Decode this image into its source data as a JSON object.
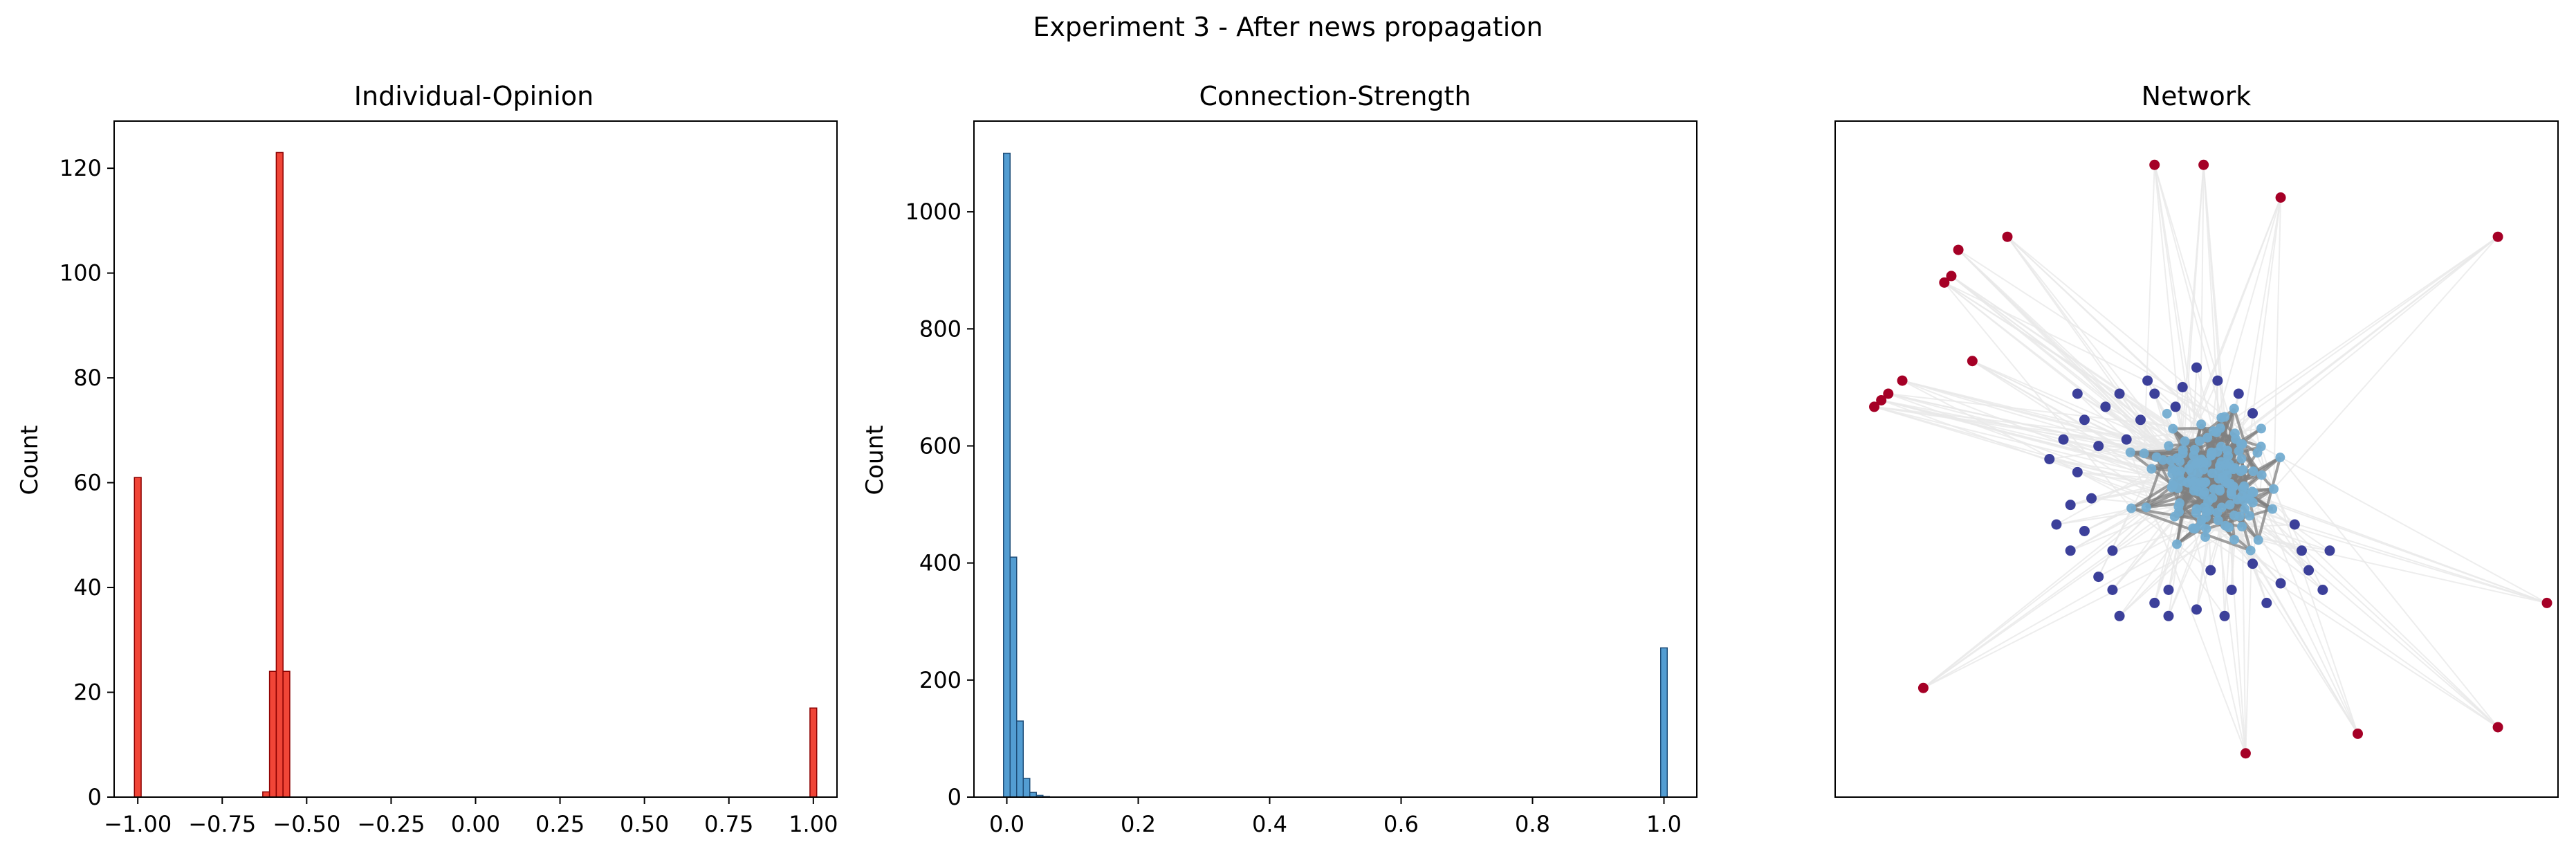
{
  "suptitle": "Experiment 3 - After news propagation",
  "colors": {
    "opinion_bar": "#ef3b2c",
    "opinion_edge": "#8b0000",
    "strength_bar": "#4a98d0",
    "strength_edge": "#1f4e79",
    "node_outer": "#a50026",
    "node_mid": "#313695",
    "node_core": "#74add1",
    "edge_strong": "#808080",
    "edge_weak": "#e8e8e8"
  },
  "chart_data": [
    {
      "type": "bar",
      "title": "Individual-Opinion",
      "xlabel": "",
      "ylabel": "Count",
      "xlim": [
        -1.07,
        1.07
      ],
      "ylim": [
        0,
        129
      ],
      "xticks": [
        -1.0,
        -0.75,
        -0.5,
        -0.25,
        0.0,
        0.25,
        0.5,
        0.75,
        1.0
      ],
      "xtick_labels": [
        "−1.00",
        "−0.75",
        "−0.50",
        "−0.25",
        "0.00",
        "0.25",
        "0.50",
        "0.75",
        "1.00"
      ],
      "yticks": [
        0,
        20,
        40,
        60,
        80,
        100,
        120
      ],
      "bin_width": 0.02,
      "bins": [
        {
          "x": -1.0,
          "count": 61
        },
        {
          "x": -0.62,
          "count": 1
        },
        {
          "x": -0.6,
          "count": 24
        },
        {
          "x": -0.58,
          "count": 123
        },
        {
          "x": -0.56,
          "count": 24
        },
        {
          "x": 1.0,
          "count": 17
        }
      ]
    },
    {
      "type": "bar",
      "title": "Connection-Strength",
      "xlabel": "",
      "ylabel": "Count",
      "xlim": [
        -0.05,
        1.05
      ],
      "ylim": [
        0,
        1155
      ],
      "xticks": [
        0.0,
        0.2,
        0.4,
        0.6,
        0.8,
        1.0
      ],
      "xtick_labels": [
        "0.0",
        "0.2",
        "0.4",
        "0.6",
        "0.8",
        "1.0"
      ],
      "yticks": [
        0,
        200,
        400,
        600,
        800,
        1000
      ],
      "bin_width": 0.01,
      "bins": [
        {
          "x": 0.0,
          "count": 1100
        },
        {
          "x": 0.01,
          "count": 410
        },
        {
          "x": 0.02,
          "count": 130
        },
        {
          "x": 0.03,
          "count": 32
        },
        {
          "x": 0.04,
          "count": 8
        },
        {
          "x": 0.05,
          "count": 3
        },
        {
          "x": 0.06,
          "count": 1
        },
        {
          "x": 1.0,
          "count": 255
        }
      ]
    },
    {
      "type": "network",
      "title": "Network",
      "xlabel": "",
      "ylabel": "",
      "xlim": [
        0,
        1
      ],
      "ylim": [
        0,
        1
      ],
      "outer_nodes": [
        [
          0.44,
          0.95
        ],
        [
          0.51,
          0.95
        ],
        [
          0.62,
          0.9
        ],
        [
          0.93,
          0.84
        ],
        [
          0.23,
          0.84
        ],
        [
          0.16,
          0.82
        ],
        [
          0.15,
          0.78
        ],
        [
          0.14,
          0.77
        ],
        [
          0.18,
          0.65
        ],
        [
          0.08,
          0.62
        ],
        [
          0.06,
          0.6
        ],
        [
          0.05,
          0.59
        ],
        [
          0.04,
          0.58
        ],
        [
          1.0,
          0.28
        ],
        [
          0.11,
          0.15
        ],
        [
          0.57,
          0.05
        ],
        [
          0.73,
          0.08
        ],
        [
          0.93,
          0.09
        ]
      ],
      "mid_nodes": [
        [
          0.37,
          0.58
        ],
        [
          0.44,
          0.6
        ],
        [
          0.53,
          0.62
        ],
        [
          0.48,
          0.61
        ],
        [
          0.58,
          0.57
        ],
        [
          0.34,
          0.56
        ],
        [
          0.31,
          0.53
        ],
        [
          0.29,
          0.5
        ],
        [
          0.33,
          0.48
        ],
        [
          0.35,
          0.44
        ],
        [
          0.32,
          0.43
        ],
        [
          0.3,
          0.4
        ],
        [
          0.34,
          0.39
        ],
        [
          0.32,
          0.36
        ],
        [
          0.36,
          0.32
        ],
        [
          0.38,
          0.3
        ],
        [
          0.39,
          0.26
        ],
        [
          0.44,
          0.28
        ],
        [
          0.46,
          0.3
        ],
        [
          0.5,
          0.27
        ],
        [
          0.52,
          0.33
        ],
        [
          0.55,
          0.3
        ],
        [
          0.58,
          0.34
        ],
        [
          0.62,
          0.31
        ],
        [
          0.66,
          0.33
        ],
        [
          0.68,
          0.3
        ],
        [
          0.69,
          0.36
        ],
        [
          0.64,
          0.4
        ],
        [
          0.4,
          0.53
        ],
        [
          0.42,
          0.56
        ],
        [
          0.5,
          0.64
        ],
        [
          0.56,
          0.6
        ],
        [
          0.36,
          0.52
        ],
        [
          0.38,
          0.36
        ],
        [
          0.46,
          0.26
        ],
        [
          0.54,
          0.26
        ],
        [
          0.6,
          0.28
        ],
        [
          0.65,
          0.36
        ],
        [
          0.43,
          0.62
        ],
        [
          0.39,
          0.6
        ],
        [
          0.47,
          0.58
        ],
        [
          0.33,
          0.6
        ]
      ],
      "core_center": [
        0.52,
        0.47
      ],
      "core_node_count": 150
    }
  ]
}
